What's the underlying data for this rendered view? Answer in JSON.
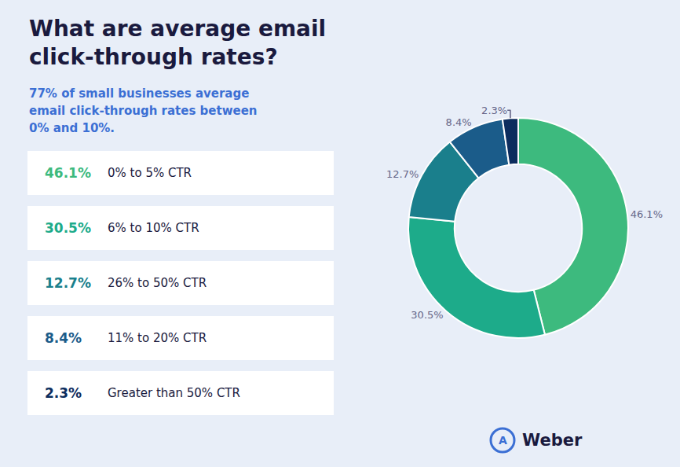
{
  "chart_data": {
    "type": "pie",
    "title": [
      "What are average email",
      "click-through rates?"
    ],
    "subtitle": [
      "77% of small businesses average",
      "email click-through rates between",
      "0% and 10%."
    ],
    "categories": [
      "0% to 5% CTR",
      "6% to 10% CTR",
      "26% to 50% CTR",
      "11% to 20% CTR",
      "Greater than 50% CTR"
    ],
    "values": [
      46.1,
      30.5,
      12.7,
      8.4,
      2.3
    ],
    "value_labels": [
      "46.1%",
      "30.5%",
      "12.7%",
      "8.4%",
      "2.3%"
    ],
    "colors": [
      "#3dba7e",
      "#1dab8a",
      "#1a7f8c",
      "#1b5c8a",
      "#0d2d5e"
    ],
    "data_labels": true,
    "legend": "left",
    "annotations": [
      "A",
      "Weber"
    ]
  }
}
